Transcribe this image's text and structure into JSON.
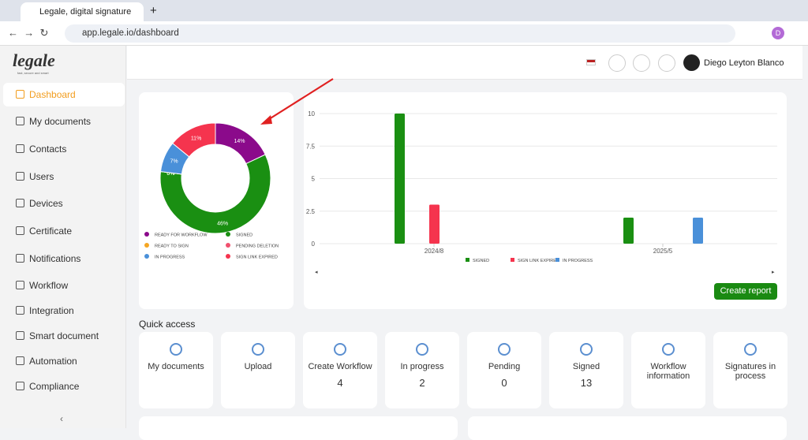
{
  "browser": {
    "tab_title": "Legale, digital signature",
    "url": "app.legale.io/dashboard",
    "profile": "D"
  },
  "sidebar": {
    "logo": "legale",
    "tagline": "fast, secure and smart",
    "items": [
      "Dashboard",
      "My documents",
      "Contacts",
      "Users",
      "Devices",
      "Certificate",
      "Notifications",
      "Workflow",
      "Integration",
      "Smart document",
      "Automation",
      "Compliance"
    ]
  },
  "header": {
    "user": "Diego Leyton Blanco"
  },
  "donut": {
    "type": "pie",
    "categories": [
      "READY FOR WORKFLOW",
      "SIGNED",
      "READY TO SIGN",
      "PENDING DELETION",
      "IN PROGRESS",
      "SIGN LINK EXPIRED"
    ],
    "values": [
      14,
      46,
      0,
      0,
      7,
      11
    ],
    "value_labels": [
      "14%",
      "46%",
      "0%",
      "0%",
      "7%",
      "11%"
    ],
    "colors": [
      "#8b0a8b",
      "#1a8f12",
      "#f5a623",
      "#f0506e",
      "#4a90d9",
      "#f5344e"
    ]
  },
  "bar_chart": {
    "type": "bar",
    "categories": [
      "2024/8",
      "2025/5"
    ],
    "series": [
      {
        "name": "SIGNED",
        "color": "#1a8f12",
        "values": [
          10,
          2
        ]
      },
      {
        "name": "SIGN LINK EXPIRED",
        "color": "#f5344e",
        "values": [
          3,
          0
        ]
      },
      {
        "name": "IN PROGRESS",
        "color": "#4a90d9",
        "values": [
          0,
          2
        ]
      }
    ],
    "ylim": [
      0,
      10
    ],
    "yticks": [
      0,
      2.5,
      5,
      7.5,
      10
    ],
    "grid": true
  },
  "create_report": "Create report",
  "quick_access": {
    "title": "Quick access",
    "items": [
      {
        "label": "My documents"
      },
      {
        "label": "Upload"
      },
      {
        "label": "Create Workflow",
        "count": 4
      },
      {
        "label": "In progress",
        "count": 2
      },
      {
        "label": "Pending",
        "count": 0
      },
      {
        "label": "Signed",
        "count": 13
      },
      {
        "label": "Workflow information"
      },
      {
        "label": "Signatures in process"
      }
    ]
  }
}
